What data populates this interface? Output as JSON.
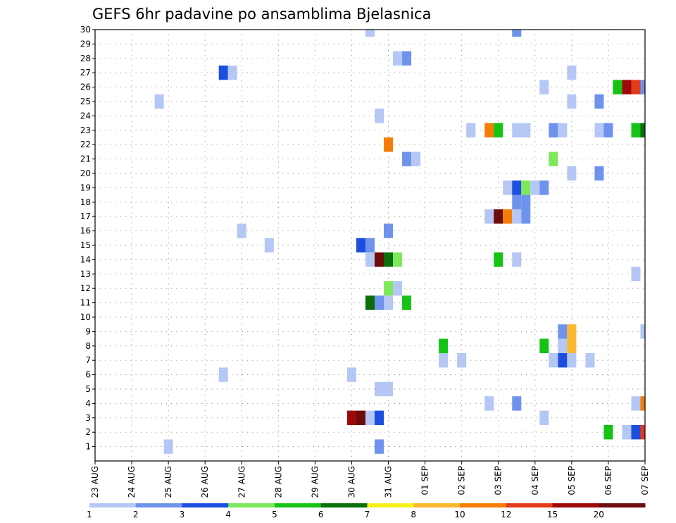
{
  "chart_data": {
    "type": "heatmap",
    "title": "GEFS 6hr padavine po ansamblima Bjelasnica",
    "x_ticks": [
      "23 AUG",
      "24 AUG",
      "25 AUG",
      "26 AUG",
      "27 AUG",
      "28 AUG",
      "29 AUG",
      "30 AUG",
      "31 AUG",
      "01 SEP",
      "02 SEP",
      "03 SEP",
      "04 SEP",
      "05 SEP",
      "06 SEP",
      "07 SEP"
    ],
    "y_ticks": [
      1,
      2,
      3,
      4,
      5,
      6,
      7,
      8,
      9,
      10,
      11,
      12,
      13,
      14,
      15,
      16,
      17,
      18,
      19,
      20,
      21,
      22,
      23,
      24,
      25,
      26,
      27,
      28,
      29,
      30
    ],
    "x_range": [
      0,
      15
    ],
    "y_range": [
      0,
      30
    ],
    "grid": true,
    "colorbar": {
      "labels": [
        "1",
        "2",
        "3",
        "4",
        "5",
        "6",
        "7",
        "8",
        "10",
        "12",
        "15",
        "20"
      ],
      "colors": [
        "#b4c7f5",
        "#6f93ec",
        "#1c4fe0",
        "#7ce85a",
        "#14c314",
        "#0a6e0a",
        "#f7f21c",
        "#f9b830",
        "#f57d07",
        "#e33a17",
        "#9e0a0a",
        "#6e0b0b"
      ],
      "thresholds": [
        1,
        2,
        3,
        4,
        5,
        6,
        7,
        8,
        10,
        12,
        15,
        20
      ]
    },
    "cells": [
      {
        "x": 7.5,
        "y": 30,
        "v": 1.5
      },
      {
        "x": 11.5,
        "y": 30,
        "v": 2.5
      },
      {
        "x": 8.25,
        "y": 28,
        "v": 1.5
      },
      {
        "x": 8.5,
        "y": 28,
        "v": 2.5
      },
      {
        "x": 3.5,
        "y": 27,
        "v": 3.5
      },
      {
        "x": 3.75,
        "y": 27,
        "v": 1.5
      },
      {
        "x": 13.0,
        "y": 27,
        "v": 1.5
      },
      {
        "x": 14.25,
        "y": 26,
        "v": 5.5
      },
      {
        "x": 14.5,
        "y": 26,
        "v": 18
      },
      {
        "x": 14.75,
        "y": 26,
        "v": 13
      },
      {
        "x": 15.0,
        "y": 26,
        "v": 2.5
      },
      {
        "x": 12.25,
        "y": 26,
        "v": 1.5
      },
      {
        "x": 1.75,
        "y": 25,
        "v": 1.5
      },
      {
        "x": 13.0,
        "y": 25,
        "v": 1.5
      },
      {
        "x": 13.75,
        "y": 25,
        "v": 2.5
      },
      {
        "x": 7.75,
        "y": 24,
        "v": 1.5
      },
      {
        "x": 10.25,
        "y": 23,
        "v": 1.5
      },
      {
        "x": 10.75,
        "y": 23,
        "v": 11
      },
      {
        "x": 11.0,
        "y": 23,
        "v": 5.5
      },
      {
        "x": 11.5,
        "y": 23,
        "v": 1.5
      },
      {
        "x": 11.75,
        "y": 23,
        "v": 1.5
      },
      {
        "x": 12.5,
        "y": 23,
        "v": 2.5
      },
      {
        "x": 12.75,
        "y": 23,
        "v": 1.5
      },
      {
        "x": 13.75,
        "y": 23,
        "v": 1.5
      },
      {
        "x": 14.0,
        "y": 23,
        "v": 2.5
      },
      {
        "x": 14.75,
        "y": 23,
        "v": 5.5
      },
      {
        "x": 15.0,
        "y": 23,
        "v": 6.5
      },
      {
        "x": 8.0,
        "y": 22,
        "v": 11
      },
      {
        "x": 8.5,
        "y": 21,
        "v": 2.5
      },
      {
        "x": 8.75,
        "y": 21,
        "v": 1.5
      },
      {
        "x": 12.5,
        "y": 21,
        "v": 4.5
      },
      {
        "x": 13.0,
        "y": 20,
        "v": 1.5
      },
      {
        "x": 13.75,
        "y": 20,
        "v": 2.5
      },
      {
        "x": 11.25,
        "y": 19,
        "v": 1.5
      },
      {
        "x": 11.5,
        "y": 19,
        "v": 3.5
      },
      {
        "x": 11.75,
        "y": 19,
        "v": 4.5
      },
      {
        "x": 12.0,
        "y": 19,
        "v": 1.5
      },
      {
        "x": 12.25,
        "y": 19,
        "v": 2.5
      },
      {
        "x": 11.5,
        "y": 18,
        "v": 2.5
      },
      {
        "x": 11.75,
        "y": 18,
        "v": 2.5
      },
      {
        "x": 10.75,
        "y": 17,
        "v": 1.5
      },
      {
        "x": 11.0,
        "y": 17,
        "v": 22
      },
      {
        "x": 11.25,
        "y": 17,
        "v": 11
      },
      {
        "x": 11.5,
        "y": 17,
        "v": 1.5
      },
      {
        "x": 11.75,
        "y": 17,
        "v": 2.5
      },
      {
        "x": 4.0,
        "y": 16,
        "v": 1.5
      },
      {
        "x": 8.0,
        "y": 16,
        "v": 2.5
      },
      {
        "x": 4.75,
        "y": 15,
        "v": 1.5
      },
      {
        "x": 7.25,
        "y": 15,
        "v": 3.5
      },
      {
        "x": 7.5,
        "y": 15,
        "v": 2.5
      },
      {
        "x": 7.5,
        "y": 14,
        "v": 1.5
      },
      {
        "x": 7.75,
        "y": 14,
        "v": 22
      },
      {
        "x": 8.0,
        "y": 14,
        "v": 6.5
      },
      {
        "x": 8.25,
        "y": 14,
        "v": 4.5
      },
      {
        "x": 11.0,
        "y": 14,
        "v": 5.5
      },
      {
        "x": 11.5,
        "y": 14,
        "v": 1.5
      },
      {
        "x": 14.75,
        "y": 13,
        "v": 1.5
      },
      {
        "x": 8.0,
        "y": 12,
        "v": 4.5
      },
      {
        "x": 8.25,
        "y": 12,
        "v": 1.5
      },
      {
        "x": 7.5,
        "y": 11,
        "v": 6.5
      },
      {
        "x": 7.75,
        "y": 11,
        "v": 2.5
      },
      {
        "x": 8.0,
        "y": 11,
        "v": 1.5
      },
      {
        "x": 8.5,
        "y": 11,
        "v": 5.5
      },
      {
        "x": 15.0,
        "y": 9,
        "v": 1.5
      },
      {
        "x": 12.75,
        "y": 9,
        "v": 2.5
      },
      {
        "x": 13.0,
        "y": 9,
        "v": 9
      },
      {
        "x": 9.5,
        "y": 8,
        "v": 5.5
      },
      {
        "x": 12.25,
        "y": 8,
        "v": 5.5
      },
      {
        "x": 12.75,
        "y": 8,
        "v": 1.5
      },
      {
        "x": 13.0,
        "y": 8,
        "v": 9
      },
      {
        "x": 9.5,
        "y": 7,
        "v": 1.5
      },
      {
        "x": 10.0,
        "y": 7,
        "v": 1.5
      },
      {
        "x": 12.5,
        "y": 7,
        "v": 1.5
      },
      {
        "x": 12.75,
        "y": 7,
        "v": 3.5
      },
      {
        "x": 13.0,
        "y": 7,
        "v": 1.5
      },
      {
        "x": 13.5,
        "y": 7,
        "v": 1.5
      },
      {
        "x": 3.5,
        "y": 6,
        "v": 1.5
      },
      {
        "x": 7.0,
        "y": 6,
        "v": 1.5
      },
      {
        "x": 7.75,
        "y": 5,
        "v": 1.5
      },
      {
        "x": 8.0,
        "y": 5,
        "v": 1.5
      },
      {
        "x": 10.75,
        "y": 4,
        "v": 1.5
      },
      {
        "x": 11.5,
        "y": 4,
        "v": 2.5
      },
      {
        "x": 14.75,
        "y": 4,
        "v": 1.5
      },
      {
        "x": 15.0,
        "y": 4,
        "v": 11
      },
      {
        "x": 7.0,
        "y": 3,
        "v": 18
      },
      {
        "x": 7.25,
        "y": 3,
        "v": 22
      },
      {
        "x": 7.5,
        "y": 3,
        "v": 1.5
      },
      {
        "x": 7.75,
        "y": 3,
        "v": 3.5
      },
      {
        "x": 12.25,
        "y": 3,
        "v": 1.5
      },
      {
        "x": 14.0,
        "y": 2,
        "v": 5.5
      },
      {
        "x": 14.5,
        "y": 2,
        "v": 1.5
      },
      {
        "x": 14.75,
        "y": 2,
        "v": 3.5
      },
      {
        "x": 15.0,
        "y": 2,
        "v": 13
      },
      {
        "x": 2.0,
        "y": 1,
        "v": 1.5
      },
      {
        "x": 7.75,
        "y": 1,
        "v": 2.5
      }
    ]
  }
}
